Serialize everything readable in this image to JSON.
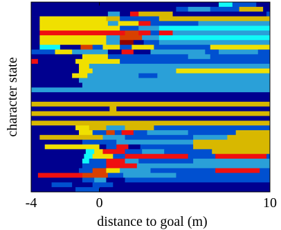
{
  "chart_data": {
    "type": "heatmap",
    "xlabel": "distance to goal (m)",
    "ylabel": "character state",
    "xlim": [
      -4,
      10
    ],
    "x_ticks": [
      -4,
      0,
      10
    ],
    "x_tick_labels": [
      "-4",
      "0",
      "10"
    ],
    "row_count": 40,
    "colormap": "jet",
    "colors": {
      "navy": "#00008f",
      "blue": "#0050d0",
      "steel": "#2aa0d8",
      "cyan": "#10f8f8",
      "yellow": "#f0e000",
      "gold": "#d8b800",
      "red": "#f01010",
      "orange": "#d84000",
      "darkred": "#900000",
      "white": "#ffffff"
    },
    "rows": [
      [
        [
          -4,
          7,
          "navy"
        ],
        [
          7,
          7.8,
          "cyan"
        ],
        [
          7.8,
          9.2,
          "blue"
        ],
        [
          9.2,
          10,
          "navy"
        ]
      ],
      [
        [
          -4,
          4.5,
          "navy"
        ],
        [
          4.5,
          5.2,
          "blue"
        ],
        [
          5.2,
          6.5,
          "steel"
        ],
        [
          6.5,
          8.2,
          "blue"
        ],
        [
          8.2,
          9.6,
          "gold"
        ],
        [
          9.6,
          10,
          "navy"
        ]
      ],
      [
        [
          -4,
          0.5,
          "navy"
        ],
        [
          0.5,
          1.2,
          "steel"
        ],
        [
          1.2,
          1.8,
          "navy"
        ],
        [
          1.8,
          2.3,
          "red"
        ],
        [
          2.3,
          4.3,
          "gold"
        ],
        [
          4.3,
          9.8,
          "navy"
        ],
        [
          9.8,
          10,
          "blue"
        ]
      ],
      [
        [
          -4,
          -3.5,
          "navy"
        ],
        [
          -3.5,
          0.4,
          "yellow"
        ],
        [
          0.4,
          1.2,
          "gold"
        ],
        [
          1.2,
          2.2,
          "blue"
        ],
        [
          2.2,
          3.5,
          "blue"
        ],
        [
          3.5,
          6.5,
          "gold"
        ],
        [
          6.5,
          10,
          "gold"
        ]
      ],
      [
        [
          -4,
          -3.5,
          "navy"
        ],
        [
          -3.5,
          0.5,
          "yellow"
        ],
        [
          0.5,
          1.1,
          "steel"
        ],
        [
          1.1,
          2.3,
          "yellow"
        ],
        [
          2.3,
          3,
          "red"
        ],
        [
          3,
          5.8,
          "blue"
        ],
        [
          5.8,
          10,
          "steel"
        ]
      ],
      [
        [
          -4,
          -3.5,
          "navy"
        ],
        [
          -3.5,
          1.2,
          "yellow"
        ],
        [
          1.2,
          2.3,
          "blue"
        ],
        [
          2.3,
          3.5,
          "steel"
        ],
        [
          3.5,
          10,
          "cyan"
        ]
      ],
      [
        [
          -4,
          -3.5,
          "navy"
        ],
        [
          -3.5,
          1.5,
          "red"
        ],
        [
          1.5,
          2.3,
          "orange"
        ],
        [
          2.3,
          3,
          "red"
        ],
        [
          3,
          3.5,
          "blue"
        ],
        [
          3.5,
          4.3,
          "red"
        ],
        [
          4.3,
          10,
          "steel"
        ]
      ],
      [
        [
          -4,
          -3.5,
          "navy"
        ],
        [
          -3.5,
          0.4,
          "yellow"
        ],
        [
          0.4,
          1.2,
          "steel"
        ],
        [
          1.2,
          1.9,
          "orange"
        ],
        [
          1.9,
          2.5,
          "orange"
        ],
        [
          2.5,
          3.5,
          "steel"
        ],
        [
          3.5,
          10,
          "cyan"
        ]
      ],
      [
        [
          -4,
          -3.5,
          "navy"
        ],
        [
          -3.5,
          0.4,
          "yellow"
        ],
        [
          0.4,
          1.2,
          "steel"
        ],
        [
          1.2,
          2,
          "darkred"
        ],
        [
          2,
          2.6,
          "navy"
        ],
        [
          2.6,
          3.5,
          "blue"
        ],
        [
          3.5,
          10,
          "steel"
        ]
      ],
      [
        [
          -4,
          -3.5,
          "navy"
        ],
        [
          -3.5,
          -2.3,
          "cyan"
        ],
        [
          -2.3,
          -1.1,
          "navy"
        ],
        [
          -1.1,
          -0.4,
          "orange"
        ],
        [
          -0.4,
          0.2,
          "blue"
        ],
        [
          0.2,
          1.2,
          "yellow"
        ],
        [
          1.2,
          1.9,
          "blue"
        ],
        [
          1.9,
          3.2,
          "yellow"
        ],
        [
          3.2,
          6.5,
          "blue"
        ],
        [
          6.5,
          10,
          "yellow"
        ]
      ],
      [
        [
          -4,
          -2.6,
          "blue"
        ],
        [
          -2.6,
          -1.6,
          "yellow"
        ],
        [
          -1.6,
          0.5,
          "steel"
        ],
        [
          0.5,
          1.3,
          "navy"
        ],
        [
          1.3,
          2,
          "red"
        ],
        [
          2,
          3,
          "navy"
        ],
        [
          3,
          6.2,
          "steel"
        ],
        [
          6.2,
          7,
          "blue"
        ],
        [
          7,
          9.3,
          "steel"
        ],
        [
          9.3,
          10,
          "blue"
        ]
      ],
      [
        [
          -4,
          -1,
          "navy"
        ],
        [
          -1,
          0.5,
          "yellow"
        ],
        [
          0.5,
          1.2,
          "blue"
        ],
        [
          1.2,
          3.5,
          "blue"
        ],
        [
          3.5,
          5.2,
          "blue"
        ],
        [
          5.2,
          6.5,
          "steel"
        ],
        [
          6.5,
          10,
          "blue"
        ]
      ],
      [
        [
          -4,
          -3.6,
          "red"
        ],
        [
          -3.6,
          -1.4,
          "navy"
        ],
        [
          -1.4,
          1.2,
          "yellow"
        ],
        [
          1.2,
          2.1,
          "blue"
        ],
        [
          2.1,
          10,
          "blue"
        ]
      ],
      [
        [
          -4,
          -1.2,
          "navy"
        ],
        [
          -1.2,
          -0.6,
          "yellow"
        ],
        [
          -0.6,
          10,
          "steel"
        ]
      ],
      [
        [
          -4,
          -1.2,
          "navy"
        ],
        [
          -1.2,
          -0.4,
          "yellow"
        ],
        [
          -0.4,
          4.5,
          "steel"
        ],
        [
          4.5,
          10,
          "yellow"
        ]
      ],
      [
        [
          -4,
          -1.6,
          "navy"
        ],
        [
          -1.6,
          -0.7,
          "yellow"
        ],
        [
          -0.7,
          2.3,
          "steel"
        ],
        [
          2.3,
          3.4,
          "blue"
        ],
        [
          3.4,
          10,
          "steel"
        ]
      ],
      [
        [
          -4,
          -1.2,
          "navy"
        ],
        [
          -1.2,
          0.5,
          "steel"
        ],
        [
          0.5,
          10,
          "steel"
        ]
      ],
      [
        [
          -4,
          -1,
          "navy"
        ],
        [
          -1,
          1.4,
          "steel"
        ],
        [
          1.4,
          10,
          "steel"
        ]
      ],
      [
        [
          -4,
          -4,
          "navy"
        ],
        [
          -4,
          10,
          "steel"
        ]
      ],
      [
        [
          -4,
          10,
          "navy"
        ]
      ],
      [
        [
          -4,
          10,
          "navy"
        ]
      ],
      [
        [
          -4,
          -3.2,
          "gold"
        ],
        [
          -3.2,
          10,
          "gold"
        ]
      ],
      [
        [
          -4,
          0.6,
          "navy"
        ],
        [
          0.6,
          1,
          "gold"
        ],
        [
          1,
          10,
          "navy"
        ]
      ],
      [
        [
          -4,
          10,
          "gold"
        ]
      ],
      [
        [
          -4,
          10,
          "navy"
        ]
      ],
      [
        [
          -4,
          10,
          "gold"
        ]
      ],
      [
        [
          -4,
          -1.4,
          "navy"
        ],
        [
          -1.4,
          -0.6,
          "yellow"
        ],
        [
          -0.6,
          0.4,
          "gold"
        ],
        [
          0.4,
          1.5,
          "steel"
        ],
        [
          1.5,
          3.2,
          "gold"
        ],
        [
          3.2,
          10,
          "blue"
        ]
      ],
      [
        [
          -4,
          -1.2,
          "navy"
        ],
        [
          -1.2,
          -0.4,
          "yellow"
        ],
        [
          -0.4,
          0.4,
          "blue"
        ],
        [
          0.4,
          0.9,
          "orange"
        ],
        [
          0.9,
          1.3,
          "blue"
        ],
        [
          1.3,
          2,
          "red"
        ],
        [
          2,
          2.8,
          "blue"
        ],
        [
          2.8,
          5.2,
          "steel"
        ],
        [
          5.2,
          8,
          "blue"
        ],
        [
          8,
          10,
          "gold"
        ]
      ],
      [
        [
          -4,
          -3.5,
          "navy"
        ],
        [
          -3.5,
          0.2,
          "gold"
        ],
        [
          0.2,
          1.5,
          "steel"
        ],
        [
          1.5,
          5.5,
          "blue"
        ],
        [
          5.5,
          7.5,
          "steel"
        ],
        [
          7.5,
          10,
          "gold"
        ]
      ],
      [
        [
          -4,
          -1,
          "navy"
        ],
        [
          -1,
          1,
          "blue"
        ],
        [
          1,
          5.5,
          "steel"
        ],
        [
          5.5,
          10,
          "gold"
        ]
      ],
      [
        [
          -4,
          -3.2,
          "navy"
        ],
        [
          -3.2,
          0,
          "yellow"
        ],
        [
          0,
          0.4,
          "navy"
        ],
        [
          0.4,
          1,
          "blue"
        ],
        [
          1,
          1.7,
          "red"
        ],
        [
          1.7,
          2.4,
          "navy"
        ],
        [
          2.4,
          5.5,
          "blue"
        ],
        [
          5.5,
          10,
          "gold"
        ]
      ],
      [
        [
          -4,
          -0.8,
          "navy"
        ],
        [
          -0.8,
          -0.3,
          "cyan"
        ],
        [
          -0.3,
          0.2,
          "yellow"
        ],
        [
          0.2,
          1.5,
          "red"
        ],
        [
          1.5,
          2.5,
          "blue"
        ],
        [
          2.5,
          3.8,
          "steel"
        ],
        [
          3.8,
          6.6,
          "blue"
        ],
        [
          6.6,
          10,
          "gold"
        ]
      ],
      [
        [
          -4,
          -0.9,
          "navy"
        ],
        [
          -0.9,
          -0.4,
          "cyan"
        ],
        [
          -0.4,
          0.8,
          "yellow"
        ],
        [
          0.8,
          1.5,
          "blue"
        ],
        [
          1.5,
          5.2,
          "red"
        ],
        [
          5.2,
          6.8,
          "blue"
        ],
        [
          6.8,
          9.8,
          "red"
        ],
        [
          9.8,
          10,
          "blue"
        ]
      ],
      [
        [
          -4,
          -1,
          "navy"
        ],
        [
          -1,
          -0.6,
          "cyan"
        ],
        [
          -0.6,
          0.4,
          "blue"
        ],
        [
          0.4,
          1.5,
          "red"
        ],
        [
          1.5,
          2.3,
          "steel"
        ],
        [
          2.3,
          5.5,
          "blue"
        ],
        [
          5.5,
          10,
          "steel"
        ]
      ],
      [
        [
          -4,
          -1,
          "navy"
        ],
        [
          -1,
          -0.3,
          "blue"
        ],
        [
          -0.3,
          0.4,
          "blue"
        ],
        [
          0.4,
          1.2,
          "red"
        ],
        [
          1.2,
          2.2,
          "red"
        ],
        [
          2.2,
          3.5,
          "steel"
        ],
        [
          3.5,
          10,
          "steel"
        ]
      ],
      [
        [
          -4,
          -1.2,
          "navy"
        ],
        [
          -1.2,
          -0.4,
          "blue"
        ],
        [
          -0.4,
          0.4,
          "orange"
        ],
        [
          0.4,
          1.2,
          "yellow"
        ],
        [
          1.2,
          3,
          "steel"
        ],
        [
          3,
          6.8,
          "blue"
        ],
        [
          6.8,
          9.4,
          "red"
        ],
        [
          9.4,
          10,
          "blue"
        ]
      ],
      [
        [
          -4,
          -3.6,
          "navy"
        ],
        [
          -3.6,
          -1,
          "red"
        ],
        [
          -1,
          0.5,
          "orange"
        ],
        [
          0.5,
          1.4,
          "blue"
        ],
        [
          1.4,
          4.5,
          "steel"
        ],
        [
          4.5,
          10,
          "blue"
        ]
      ],
      [
        [
          -4,
          -1,
          "navy"
        ],
        [
          -1,
          -0.3,
          "blue"
        ],
        [
          -0.3,
          0.4,
          "steel"
        ],
        [
          0.4,
          1.5,
          "navy"
        ],
        [
          1.5,
          3,
          "blue"
        ],
        [
          3,
          10,
          "blue"
        ]
      ],
      [
        [
          -4,
          -2.8,
          "navy"
        ],
        [
          -2.8,
          -1.6,
          "blue"
        ],
        [
          -1.6,
          -0.4,
          "navy"
        ],
        [
          -0.4,
          0.8,
          "blue"
        ],
        [
          0.8,
          10,
          "navy"
        ]
      ],
      [
        [
          -4,
          -1.4,
          "navy"
        ],
        [
          -1.4,
          0,
          "blue"
        ],
        [
          0,
          0.8,
          "navy"
        ],
        [
          0.8,
          10,
          "navy"
        ]
      ]
    ]
  }
}
